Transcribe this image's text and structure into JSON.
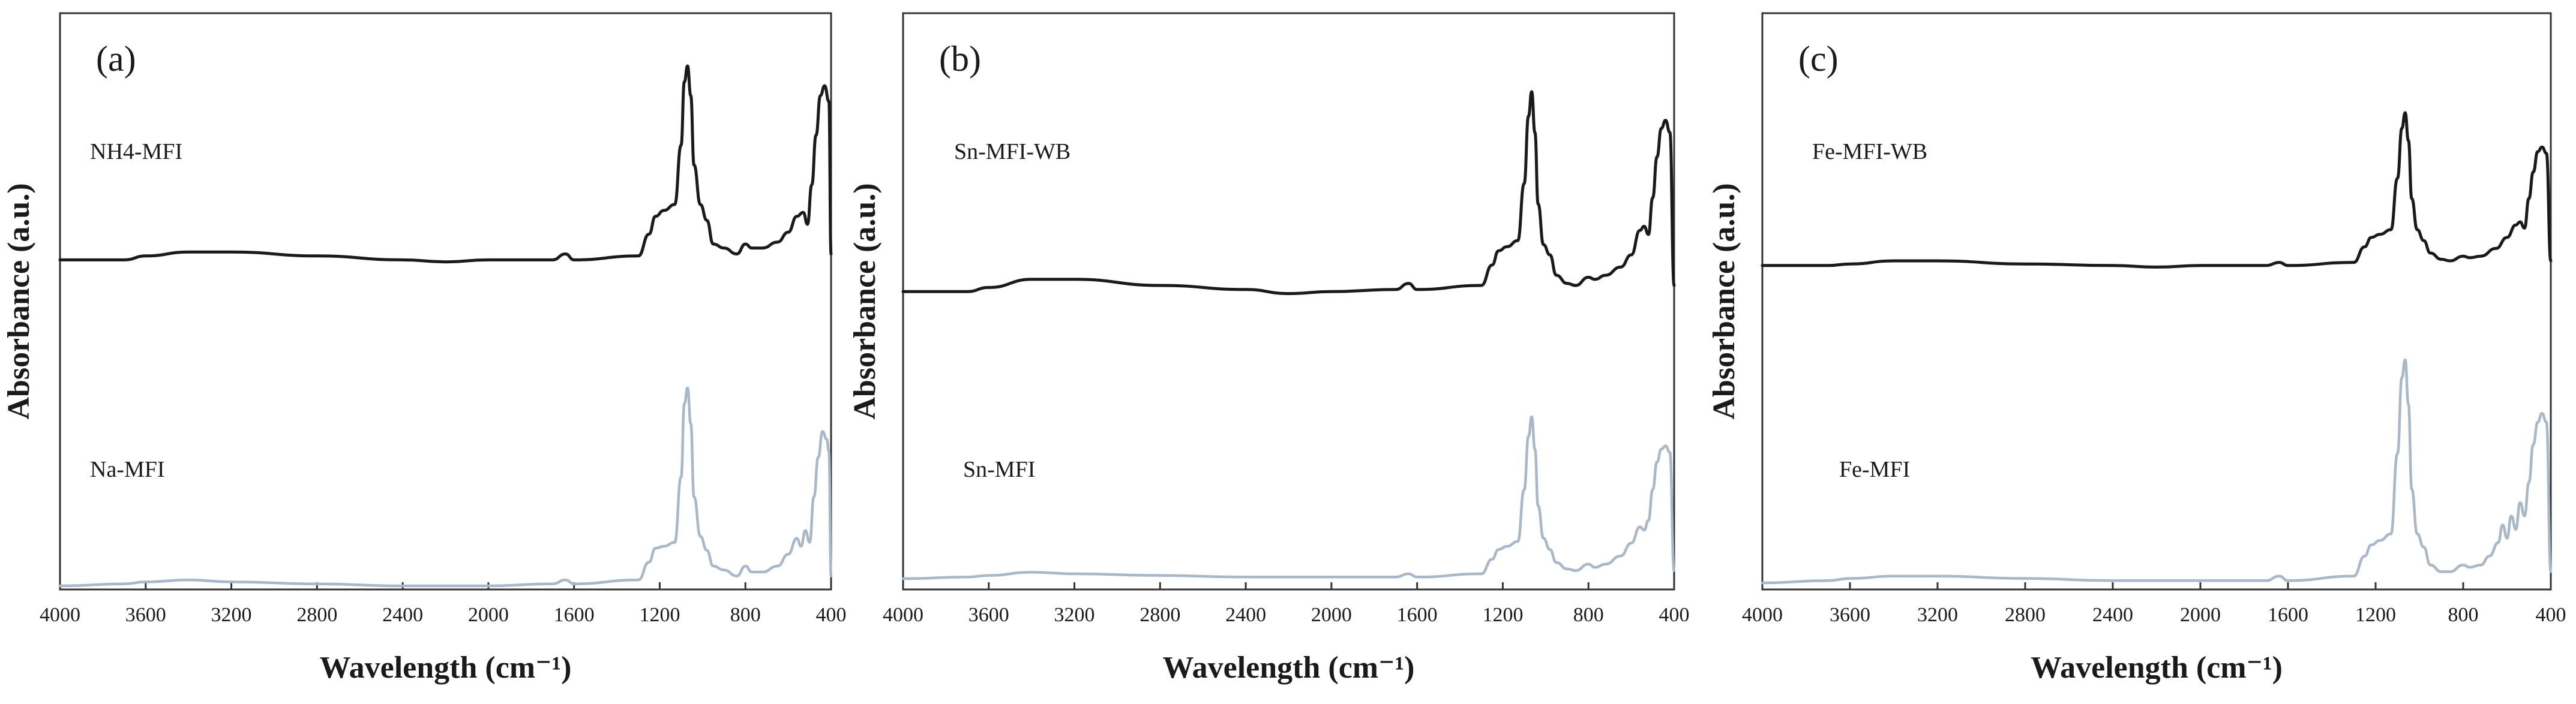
{
  "chart_data": [
    {
      "type": "line",
      "panel_label": "(a)",
      "xlabel": "Wavelength (cm⁻¹)",
      "ylabel": "Absorbance (a.u.)",
      "xlim": [
        4000,
        400
      ],
      "x_reversed": true,
      "xticks": [
        4000,
        3600,
        3200,
        2800,
        2400,
        2000,
        1600,
        1200,
        800,
        400
      ],
      "grid": false,
      "legend": "inline labels",
      "series": [
        {
          "name": "NH4-MFI",
          "color": "#1a1a1a",
          "position": "upper",
          "points": [
            [
              4000,
              0.02
            ],
            [
              3700,
              0.02
            ],
            [
              3600,
              0.04
            ],
            [
              3400,
              0.06
            ],
            [
              3200,
              0.06
            ],
            [
              2800,
              0.04
            ],
            [
              2400,
              0.02
            ],
            [
              2200,
              0.01
            ],
            [
              2000,
              0.02
            ],
            [
              1700,
              0.02
            ],
            [
              1640,
              0.05
            ],
            [
              1600,
              0.02
            ],
            [
              1300,
              0.04
            ],
            [
              1250,
              0.15
            ],
            [
              1220,
              0.24
            ],
            [
              1180,
              0.27
            ],
            [
              1130,
              0.3
            ],
            [
              1100,
              0.6
            ],
            [
              1085,
              0.92
            ],
            [
              1070,
              1.0
            ],
            [
              1055,
              0.85
            ],
            [
              1040,
              0.5
            ],
            [
              1010,
              0.3
            ],
            [
              980,
              0.22
            ],
            [
              950,
              0.1
            ],
            [
              900,
              0.08
            ],
            [
              840,
              0.05
            ],
            [
              800,
              0.1
            ],
            [
              770,
              0.08
            ],
            [
              720,
              0.08
            ],
            [
              650,
              0.11
            ],
            [
              600,
              0.16
            ],
            [
              560,
              0.24
            ],
            [
              530,
              0.26
            ],
            [
              510,
              0.2
            ],
            [
              490,
              0.4
            ],
            [
              470,
              0.65
            ],
            [
              450,
              0.85
            ],
            [
              430,
              0.9
            ],
            [
              410,
              0.82
            ],
            [
              400,
              0.05
            ]
          ]
        },
        {
          "name": "Na-MFI",
          "color": "#a9b8c8",
          "position": "lower",
          "points": [
            [
              4000,
              0.0
            ],
            [
              3700,
              0.01
            ],
            [
              3600,
              0.02
            ],
            [
              3400,
              0.03
            ],
            [
              3200,
              0.02
            ],
            [
              2800,
              0.01
            ],
            [
              2400,
              0.0
            ],
            [
              2000,
              0.0
            ],
            [
              1700,
              0.01
            ],
            [
              1640,
              0.03
            ],
            [
              1600,
              0.01
            ],
            [
              1300,
              0.03
            ],
            [
              1250,
              0.12
            ],
            [
              1220,
              0.19
            ],
            [
              1180,
              0.2
            ],
            [
              1130,
              0.22
            ],
            [
              1100,
              0.55
            ],
            [
              1085,
              0.92
            ],
            [
              1070,
              1.0
            ],
            [
              1055,
              0.82
            ],
            [
              1040,
              0.45
            ],
            [
              1010,
              0.25
            ],
            [
              980,
              0.18
            ],
            [
              950,
              0.1
            ],
            [
              900,
              0.08
            ],
            [
              840,
              0.05
            ],
            [
              800,
              0.1
            ],
            [
              770,
              0.07
            ],
            [
              720,
              0.07
            ],
            [
              650,
              0.1
            ],
            [
              600,
              0.16
            ],
            [
              560,
              0.24
            ],
            [
              540,
              0.2
            ],
            [
              520,
              0.28
            ],
            [
              500,
              0.22
            ],
            [
              480,
              0.45
            ],
            [
              460,
              0.65
            ],
            [
              440,
              0.78
            ],
            [
              420,
              0.74
            ],
            [
              410,
              0.68
            ],
            [
              400,
              0.05
            ]
          ]
        }
      ]
    },
    {
      "type": "line",
      "panel_label": "(b)",
      "xlabel": "Wavelength (cm⁻¹)",
      "ylabel": "Absorbance (a.u.)",
      "xlim": [
        4000,
        400
      ],
      "x_reversed": true,
      "xticks": [
        4000,
        3600,
        3200,
        2800,
        2400,
        2000,
        1600,
        1200,
        800,
        400
      ],
      "grid": false,
      "legend": "inline labels",
      "series": [
        {
          "name": "Sn-MFI-WB",
          "color": "#1a1a1a",
          "position": "upper",
          "points": [
            [
              4000,
              0.02
            ],
            [
              3700,
              0.02
            ],
            [
              3600,
              0.04
            ],
            [
              3400,
              0.08
            ],
            [
              3200,
              0.08
            ],
            [
              2800,
              0.05
            ],
            [
              2400,
              0.03
            ],
            [
              2200,
              0.01
            ],
            [
              2000,
              0.02
            ],
            [
              1700,
              0.03
            ],
            [
              1640,
              0.06
            ],
            [
              1600,
              0.03
            ],
            [
              1300,
              0.05
            ],
            [
              1250,
              0.15
            ],
            [
              1220,
              0.22
            ],
            [
              1180,
              0.24
            ],
            [
              1130,
              0.27
            ],
            [
              1100,
              0.55
            ],
            [
              1080,
              0.88
            ],
            [
              1065,
              1.0
            ],
            [
              1050,
              0.8
            ],
            [
              1035,
              0.45
            ],
            [
              1010,
              0.25
            ],
            [
              980,
              0.2
            ],
            [
              950,
              0.1
            ],
            [
              900,
              0.06
            ],
            [
              860,
              0.05
            ],
            [
              800,
              0.09
            ],
            [
              770,
              0.08
            ],
            [
              720,
              0.1
            ],
            [
              650,
              0.14
            ],
            [
              600,
              0.2
            ],
            [
              560,
              0.32
            ],
            [
              540,
              0.34
            ],
            [
              520,
              0.3
            ],
            [
              500,
              0.48
            ],
            [
              480,
              0.68
            ],
            [
              460,
              0.82
            ],
            [
              440,
              0.86
            ],
            [
              420,
              0.8
            ],
            [
              400,
              0.05
            ]
          ]
        },
        {
          "name": "Sn-MFI",
          "color": "#a9b8c8",
          "position": "lower",
          "points": [
            [
              4000,
              0.0
            ],
            [
              3700,
              0.01
            ],
            [
              3600,
              0.02
            ],
            [
              3400,
              0.04
            ],
            [
              3200,
              0.03
            ],
            [
              2800,
              0.02
            ],
            [
              2400,
              0.01
            ],
            [
              2000,
              0.01
            ],
            [
              1700,
              0.01
            ],
            [
              1640,
              0.03
            ],
            [
              1600,
              0.01
            ],
            [
              1300,
              0.03
            ],
            [
              1250,
              0.12
            ],
            [
              1220,
              0.18
            ],
            [
              1180,
              0.2
            ],
            [
              1130,
              0.23
            ],
            [
              1100,
              0.55
            ],
            [
              1080,
              0.88
            ],
            [
              1065,
              1.0
            ],
            [
              1050,
              0.8
            ],
            [
              1035,
              0.45
            ],
            [
              1010,
              0.25
            ],
            [
              980,
              0.18
            ],
            [
              950,
              0.1
            ],
            [
              900,
              0.06
            ],
            [
              860,
              0.05
            ],
            [
              800,
              0.09
            ],
            [
              770,
              0.07
            ],
            [
              720,
              0.09
            ],
            [
              650,
              0.14
            ],
            [
              600,
              0.22
            ],
            [
              560,
              0.32
            ],
            [
              540,
              0.3
            ],
            [
              520,
              0.36
            ],
            [
              500,
              0.55
            ],
            [
              480,
              0.72
            ],
            [
              460,
              0.8
            ],
            [
              440,
              0.82
            ],
            [
              420,
              0.78
            ],
            [
              400,
              0.05
            ]
          ]
        }
      ]
    },
    {
      "type": "line",
      "panel_label": "(c)",
      "xlabel": "Wavelength (cm⁻¹)",
      "ylabel": "Absorbance (a.u.)",
      "xlim": [
        4000,
        400
      ],
      "x_reversed": true,
      "xticks": [
        4000,
        3600,
        3200,
        2800,
        2400,
        2000,
        1600,
        1200,
        800,
        400
      ],
      "grid": false,
      "legend": "inline labels",
      "series": [
        {
          "name": "Fe-MFI-WB",
          "color": "#1a1a1a",
          "position": "upper",
          "points": [
            [
              4000,
              0.02
            ],
            [
              3700,
              0.02
            ],
            [
              3600,
              0.03
            ],
            [
              3400,
              0.05
            ],
            [
              3200,
              0.05
            ],
            [
              2800,
              0.03
            ],
            [
              2400,
              0.02
            ],
            [
              2200,
              0.01
            ],
            [
              2000,
              0.02
            ],
            [
              1700,
              0.02
            ],
            [
              1640,
              0.04
            ],
            [
              1600,
              0.02
            ],
            [
              1300,
              0.04
            ],
            [
              1250,
              0.14
            ],
            [
              1220,
              0.2
            ],
            [
              1180,
              0.22
            ],
            [
              1130,
              0.25
            ],
            [
              1100,
              0.58
            ],
            [
              1080,
              0.9
            ],
            [
              1065,
              1.0
            ],
            [
              1050,
              0.82
            ],
            [
              1035,
              0.45
            ],
            [
              1010,
              0.25
            ],
            [
              980,
              0.18
            ],
            [
              950,
              0.1
            ],
            [
              900,
              0.06
            ],
            [
              860,
              0.05
            ],
            [
              800,
              0.08
            ],
            [
              770,
              0.07
            ],
            [
              720,
              0.08
            ],
            [
              650,
              0.13
            ],
            [
              600,
              0.2
            ],
            [
              560,
              0.28
            ],
            [
              540,
              0.3
            ],
            [
              520,
              0.26
            ],
            [
              500,
              0.45
            ],
            [
              480,
              0.62
            ],
            [
              460,
              0.75
            ],
            [
              440,
              0.78
            ],
            [
              420,
              0.74
            ],
            [
              400,
              0.05
            ]
          ]
        },
        {
          "name": "Fe-MFI",
          "color": "#a9b8c8",
          "position": "lower",
          "points": [
            [
              4000,
              0.0
            ],
            [
              3700,
              0.01
            ],
            [
              3600,
              0.02
            ],
            [
              3400,
              0.03
            ],
            [
              3200,
              0.03
            ],
            [
              2800,
              0.02
            ],
            [
              2400,
              0.01
            ],
            [
              2000,
              0.01
            ],
            [
              1700,
              0.01
            ],
            [
              1640,
              0.03
            ],
            [
              1600,
              0.01
            ],
            [
              1300,
              0.03
            ],
            [
              1250,
              0.12
            ],
            [
              1220,
              0.17
            ],
            [
              1180,
              0.19
            ],
            [
              1130,
              0.22
            ],
            [
              1100,
              0.58
            ],
            [
              1080,
              0.92
            ],
            [
              1065,
              1.0
            ],
            [
              1050,
              0.8
            ],
            [
              1035,
              0.42
            ],
            [
              1010,
              0.22
            ],
            [
              980,
              0.16
            ],
            [
              950,
              0.08
            ],
            [
              900,
              0.05
            ],
            [
              860,
              0.05
            ],
            [
              800,
              0.08
            ],
            [
              770,
              0.07
            ],
            [
              720,
              0.08
            ],
            [
              680,
              0.12
            ],
            [
              640,
              0.18
            ],
            [
              620,
              0.26
            ],
            [
              600,
              0.2
            ],
            [
              580,
              0.3
            ],
            [
              560,
              0.24
            ],
            [
              540,
              0.36
            ],
            [
              520,
              0.3
            ],
            [
              500,
              0.45
            ],
            [
              480,
              0.62
            ],
            [
              460,
              0.72
            ],
            [
              440,
              0.76
            ],
            [
              420,
              0.72
            ],
            [
              400,
              0.05
            ]
          ]
        }
      ]
    }
  ]
}
